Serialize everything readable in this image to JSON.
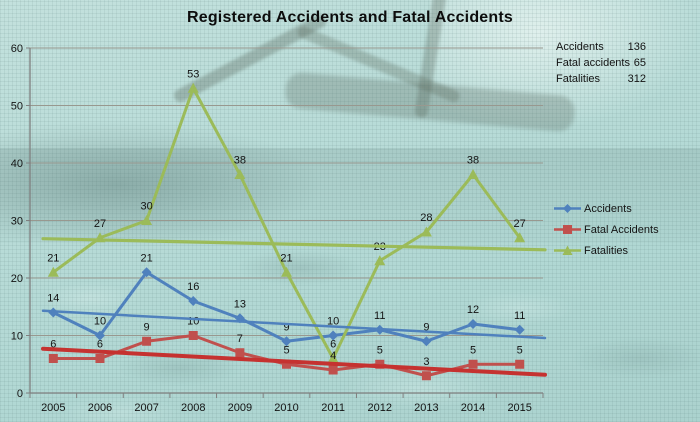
{
  "title": "Registered Accidents and Fatal Accidents",
  "summary": {
    "rows": [
      {
        "label": "Accidents",
        "value": "136"
      },
      {
        "label": "Fatal accidents",
        "value": "65"
      },
      {
        "label": "Fatalities",
        "value": "312"
      }
    ]
  },
  "legend": {
    "position": "right",
    "items": [
      {
        "label": "Accidents",
        "marker": "diamond",
        "color": "#4F81BD"
      },
      {
        "label": "Fatal Accidents",
        "marker": "square",
        "color": "#C0504D"
      },
      {
        "label": "Fatalities",
        "marker": "triangle",
        "color": "#9BBB59"
      }
    ]
  },
  "chart_data": {
    "type": "line",
    "title": "Registered Accidents and Fatal Accidents",
    "categories": [
      "2005",
      "2006",
      "2007",
      "2008",
      "2009",
      "2010",
      "2011",
      "2012",
      "2013",
      "2014",
      "2015"
    ],
    "series": [
      {
        "name": "Accidents",
        "color": "#4F81BD",
        "marker": "diamond",
        "values": [
          14,
          10,
          21,
          16,
          13,
          9,
          10,
          11,
          9,
          12,
          11
        ]
      },
      {
        "name": "Fatal Accidents",
        "color": "#C0504D",
        "marker": "square",
        "values": [
          6,
          6,
          9,
          10,
          7,
          5,
          4,
          5,
          3,
          5,
          5
        ]
      },
      {
        "name": "Fatalities",
        "color": "#9BBB59",
        "marker": "triangle",
        "values": [
          21,
          27,
          30,
          53,
          38,
          21,
          6,
          23,
          28,
          38,
          27
        ]
      }
    ],
    "trendlines": [
      {
        "series": "Accidents",
        "color": "#4F81BD",
        "start_value": 14.2,
        "end_value": 9.8,
        "width": 2.5
      },
      {
        "series": "Fatal Accidents",
        "color": "#C53230",
        "start_value": 7.6,
        "end_value": 3.4,
        "width": 4
      },
      {
        "series": "Fatalities",
        "color": "#9BBB59",
        "start_value": 26.8,
        "end_value": 25.0,
        "width": 3.2
      },
      {
        "series": "_line_widths",
        "color": "",
        "start_value": 0,
        "end_value": 0,
        "width": 3
      }
    ],
    "xlabel": "",
    "ylabel": "",
    "ylim": [
      0,
      60
    ],
    "yticks": [
      0,
      10,
      20,
      30,
      40,
      50,
      60
    ],
    "grid": true,
    "data_labels": true,
    "legend_position": "right",
    "colors": {
      "gridline": "#98988f",
      "axis": "#7f7f7f",
      "label": "#141414"
    }
  }
}
